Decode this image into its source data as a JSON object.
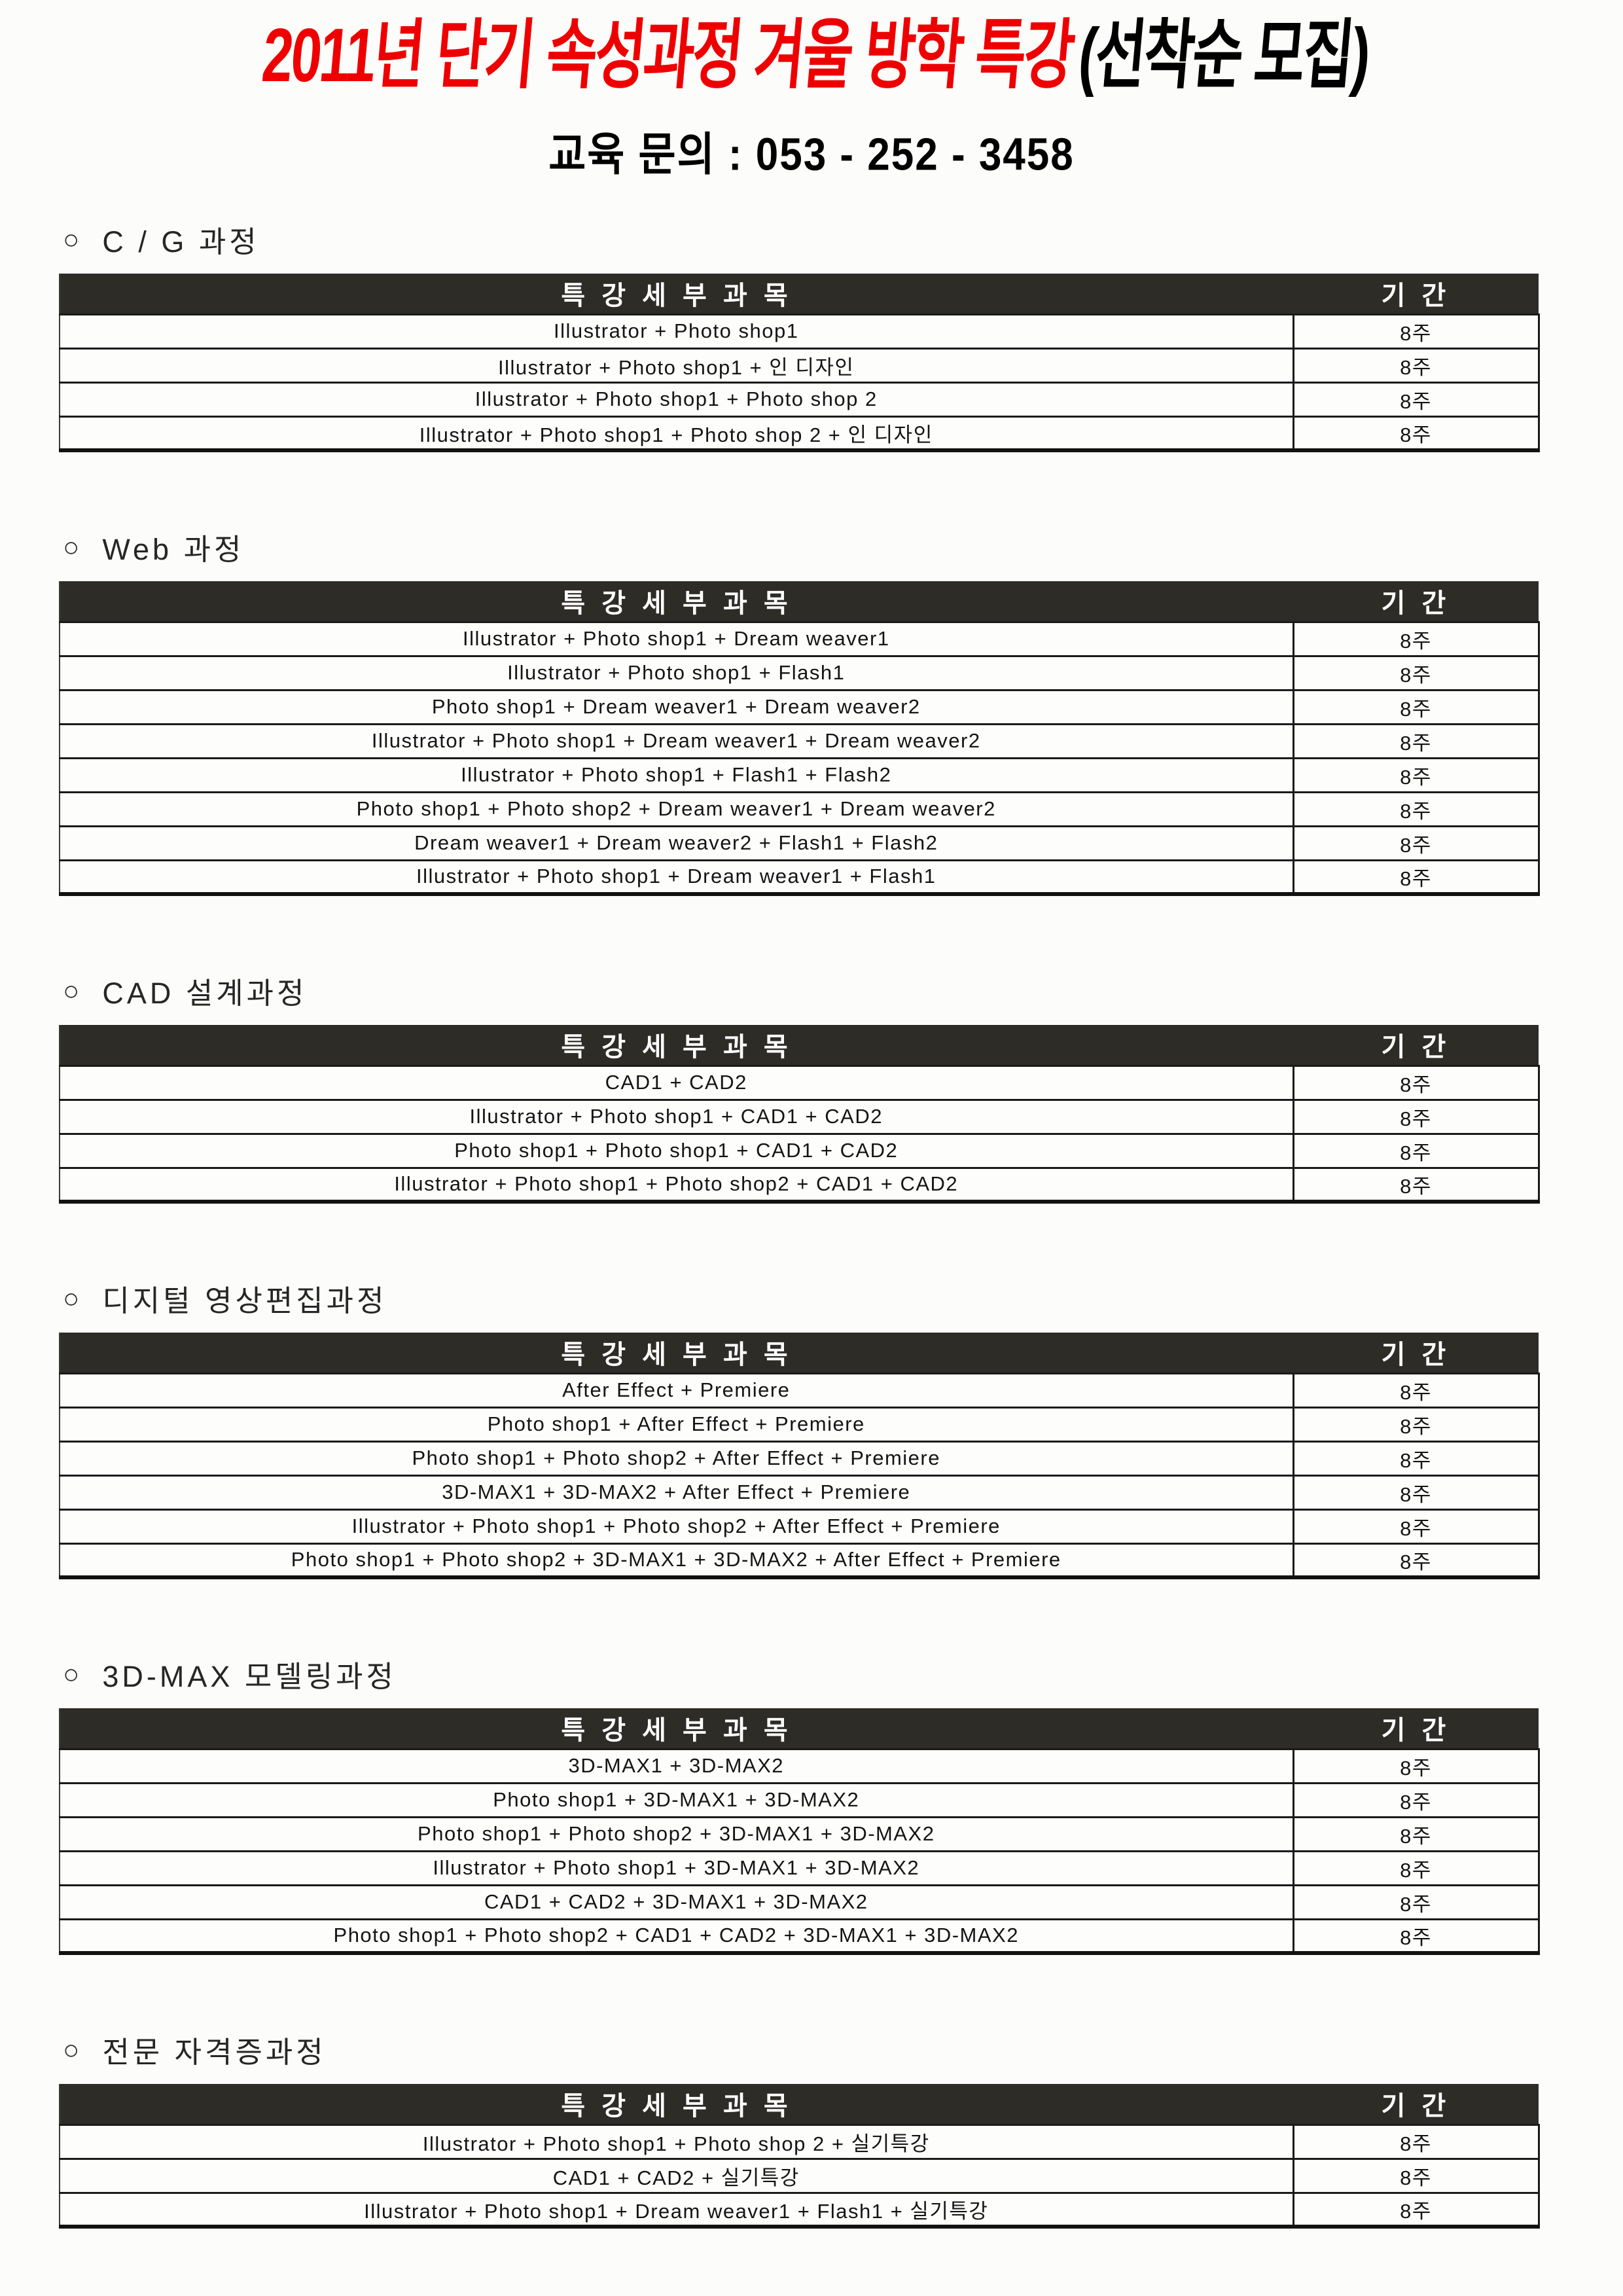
{
  "page": {
    "title_red": "2011년 단기 속성과정 겨울 방학 특강",
    "title_black": "(선착순 모집)",
    "subtitle": "교육 문의 : 053 - 252 - 3458"
  },
  "colors": {
    "title_red": "#ee0000",
    "header_bar": "#2d2c27"
  },
  "table_header": {
    "subject": "특 강 세 부 과 목",
    "duration": "기 간"
  },
  "sections": [
    {
      "bullet": "○",
      "title": "C / G 과정",
      "rows": [
        {
          "subject": "Illustrator + Photo shop1",
          "duration": "8주"
        },
        {
          "subject": "Illustrator + Photo shop1 + 인 디자인",
          "duration": "8주"
        },
        {
          "subject": "Illustrator + Photo shop1 + Photo shop 2",
          "duration": "8주"
        },
        {
          "subject": "Illustrator + Photo shop1 + Photo shop 2 + 인 디자인",
          "duration": "8주"
        }
      ]
    },
    {
      "bullet": "○",
      "title": "Web 과정",
      "rows": [
        {
          "subject": "Illustrator + Photo shop1 + Dream weaver1",
          "duration": "8주"
        },
        {
          "subject": "Illustrator + Photo shop1 + Flash1",
          "duration": "8주"
        },
        {
          "subject": "Photo shop1 + Dream weaver1 + Dream weaver2",
          "duration": "8주"
        },
        {
          "subject": "Illustrator + Photo shop1 + Dream weaver1 + Dream weaver2",
          "duration": "8주"
        },
        {
          "subject": "Illustrator + Photo shop1 + Flash1 + Flash2",
          "duration": "8주"
        },
        {
          "subject": "Photo shop1 + Photo shop2 + Dream weaver1 + Dream weaver2",
          "duration": "8주"
        },
        {
          "subject": "Dream weaver1 + Dream weaver2 + Flash1 + Flash2",
          "duration": "8주"
        },
        {
          "subject": "Illustrator + Photo shop1 + Dream weaver1 + Flash1",
          "duration": "8주"
        }
      ]
    },
    {
      "bullet": "○",
      "title": "CAD 설계과정",
      "rows": [
        {
          "subject": "CAD1 + CAD2",
          "duration": "8주"
        },
        {
          "subject": "Illustrator + Photo shop1 + CAD1 + CAD2",
          "duration": "8주"
        },
        {
          "subject": "Photo shop1 + Photo shop1 + CAD1 + CAD2",
          "duration": "8주"
        },
        {
          "subject": "Illustrator + Photo shop1 + Photo shop2 + CAD1 + CAD2",
          "duration": "8주"
        }
      ]
    },
    {
      "bullet": "○",
      "title": "디지털 영상편집과정",
      "rows": [
        {
          "subject": "After Effect + Premiere",
          "duration": "8주"
        },
        {
          "subject": "Photo shop1 + After Effect + Premiere",
          "duration": "8주"
        },
        {
          "subject": "Photo shop1 + Photo shop2 + After Effect + Premiere",
          "duration": "8주"
        },
        {
          "subject": "3D-MAX1 + 3D-MAX2 + After Effect + Premiere",
          "duration": "8주"
        },
        {
          "subject": "Illustrator + Photo shop1 + Photo shop2 + After Effect + Premiere",
          "duration": "8주"
        },
        {
          "subject": "Photo shop1 + Photo shop2 + 3D-MAX1 + 3D-MAX2 + After Effect + Premiere",
          "duration": "8주"
        }
      ]
    },
    {
      "bullet": "○",
      "title": "3D-MAX 모델링과정",
      "rows": [
        {
          "subject": "3D-MAX1 + 3D-MAX2",
          "duration": "8주"
        },
        {
          "subject": "Photo shop1 + 3D-MAX1 + 3D-MAX2",
          "duration": "8주"
        },
        {
          "subject": "Photo shop1 + Photo shop2 + 3D-MAX1 + 3D-MAX2",
          "duration": "8주"
        },
        {
          "subject": "Illustrator + Photo shop1 + 3D-MAX1 + 3D-MAX2",
          "duration": "8주"
        },
        {
          "subject": "CAD1 + CAD2 + 3D-MAX1 + 3D-MAX2",
          "duration": "8주"
        },
        {
          "subject": "Photo shop1 + Photo shop2 + CAD1 + CAD2 + 3D-MAX1 + 3D-MAX2",
          "duration": "8주"
        }
      ]
    },
    {
      "bullet": "○",
      "title": "전문 자격증과정",
      "rows": [
        {
          "subject": "Illustrator + Photo shop1 + Photo shop 2 + 실기특강",
          "duration": "8주"
        },
        {
          "subject": "CAD1 + CAD2 + 실기특강",
          "duration": "8주"
        },
        {
          "subject": "Illustrator + Photo shop1 + Dream weaver1 + Flash1 + 실기특강",
          "duration": "8주"
        }
      ]
    }
  ]
}
